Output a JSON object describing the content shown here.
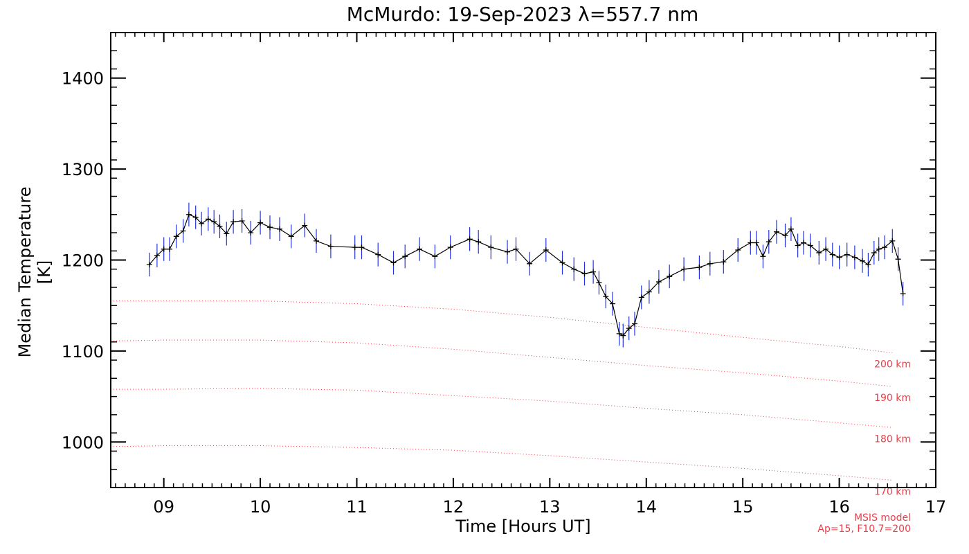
{
  "chart_data": {
    "type": "line",
    "title": "McMurdo: 19-Sep-2023 λ=557.7 nm",
    "xlabel": "Time [Hours UT]",
    "ylabel": "Median Temperature [K]",
    "xlim": [
      8.45,
      17.0
    ],
    "ylim": [
      950,
      1450
    ],
    "xticks": [
      9,
      10,
      11,
      12,
      13,
      14,
      15,
      16,
      17
    ],
    "xtick_labels": [
      "09",
      "10",
      "11",
      "12",
      "13",
      "14",
      "15",
      "16",
      "17"
    ],
    "yticks": [
      1000,
      1100,
      1200,
      1300,
      1400
    ],
    "ytick_labels": [
      "1000",
      "1100",
      "1200",
      "1300",
      "1400"
    ],
    "grid": false,
    "series": [
      {
        "color": "#000000",
        "errorbar_color": "#2233dd",
        "error": 13,
        "x": [
          8.85,
          8.93,
          9.0,
          9.06,
          9.13,
          9.2,
          9.26,
          9.33,
          9.39,
          9.46,
          9.52,
          9.58,
          9.65,
          9.72,
          9.81,
          9.9,
          10.0,
          10.1,
          10.2,
          10.32,
          10.46,
          10.58,
          10.73,
          10.98,
          11.05,
          11.22,
          11.38,
          11.5,
          11.65,
          11.81,
          11.97,
          12.17,
          12.26,
          12.39,
          12.56,
          12.65,
          12.79,
          12.96,
          13.13,
          13.25,
          13.36,
          13.45,
          13.51,
          13.58,
          13.65,
          13.72,
          13.76,
          13.82,
          13.88,
          13.95,
          14.03,
          14.13,
          14.24,
          14.39,
          14.55,
          14.66,
          14.8,
          14.95,
          15.08,
          15.14,
          15.21,
          15.27,
          15.35,
          15.44,
          15.5,
          15.57,
          15.63,
          15.7,
          15.79,
          15.86,
          15.93,
          16.0,
          16.08,
          16.16,
          16.24,
          16.3,
          16.36,
          16.41,
          16.47,
          16.55,
          16.61,
          16.66
        ],
        "y": [
          1195,
          1205,
          1212,
          1212,
          1226,
          1232,
          1250,
          1247,
          1240,
          1245,
          1242,
          1237,
          1229,
          1242,
          1243,
          1230,
          1241,
          1236,
          1234,
          1226,
          1238,
          1221,
          1215,
          1214,
          1214,
          1206,
          1197,
          1204,
          1212,
          1204,
          1214,
          1223,
          1220,
          1214,
          1209,
          1212,
          1196,
          1211,
          1197,
          1190,
          1185,
          1187,
          1175,
          1160,
          1152,
          1119,
          1117,
          1125,
          1130,
          1159,
          1165,
          1176,
          1182,
          1190,
          1192,
          1196,
          1198,
          1211,
          1219,
          1219,
          1204,
          1220,
          1231,
          1227,
          1234,
          1216,
          1219,
          1216,
          1208,
          1212,
          1206,
          1203,
          1206,
          1203,
          1199,
          1195,
          1208,
          1212,
          1214,
          1221,
          1201,
          1163
        ]
      }
    ],
    "model_lines": [
      {
        "label": "200 km",
        "x": [
          8.45,
          9.0,
          10.0,
          11.0,
          12.0,
          13.0,
          14.0,
          15.0,
          16.0,
          16.55
        ],
        "y": [
          1155,
          1155,
          1155,
          1152,
          1146,
          1137,
          1126,
          1115,
          1105,
          1098
        ],
        "color": "#e8404a"
      },
      {
        "label": "190 km",
        "x": [
          8.45,
          9.0,
          10.0,
          11.0,
          12.0,
          13.0,
          14.0,
          15.0,
          16.0,
          16.55
        ],
        "y": [
          1111,
          1112,
          1112,
          1109,
          1102,
          1093,
          1084,
          1076,
          1067,
          1061
        ],
        "color": "#e8404a"
      },
      {
        "label": "180 km",
        "x": [
          8.45,
          9.0,
          10.0,
          11.0,
          12.0,
          13.0,
          14.0,
          15.0,
          16.0,
          16.55
        ],
        "y": [
          1058,
          1058,
          1059,
          1057,
          1051,
          1045,
          1037,
          1030,
          1021,
          1016
        ],
        "color": "#e8404a"
      },
      {
        "label": "170 km",
        "x": [
          8.45,
          9.0,
          10.0,
          11.0,
          12.0,
          13.0,
          14.0,
          15.0,
          16.0,
          16.55
        ],
        "y": [
          995,
          996,
          996,
          994,
          991,
          985,
          978,
          971,
          963,
          958
        ],
        "color": "#e8404a"
      }
    ],
    "footnote": [
      "MSIS model",
      "Ap=15, F10.7=200"
    ]
  }
}
